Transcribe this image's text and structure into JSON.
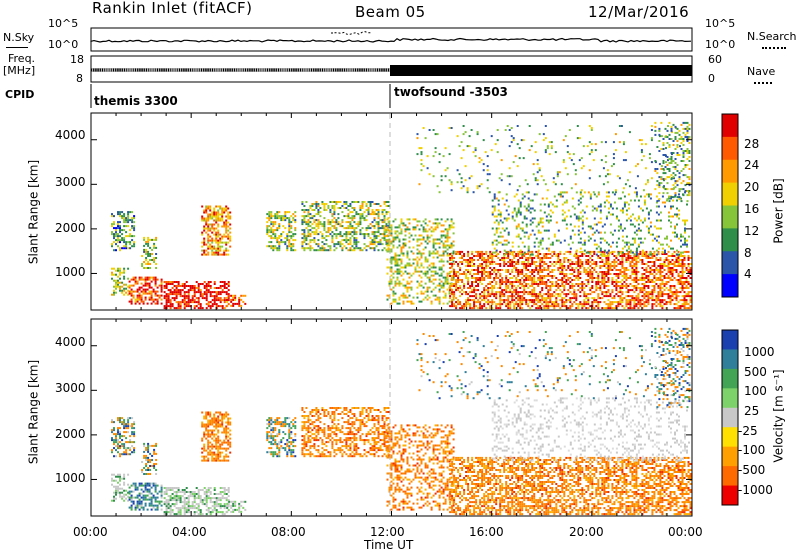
{
  "header": {
    "station": "Rankin Inlet (fitACF)",
    "beam": "Beam 05",
    "date": "12/Mar/2016"
  },
  "noise_panel": {
    "left_label": "N.Sky",
    "right_label": "N.Search",
    "left_ticks": [
      "10^5",
      "10^0"
    ],
    "right_ticks": [
      "10^5",
      "10^0"
    ]
  },
  "freq_panel": {
    "left_label_1": "Freq.",
    "left_label_2": "[MHz]",
    "right_label": "Nave",
    "left_ticks": [
      "18",
      "8"
    ],
    "right_ticks": [
      "60",
      "0"
    ]
  },
  "cpid_panel": {
    "label": "CPID",
    "mode_1": "themis 3300",
    "mode_2": "twofsound -3503"
  },
  "power_colorbar": {
    "label": "Power [dB]",
    "ticks": [
      "28",
      "24",
      "20",
      "16",
      "12",
      "8",
      "4"
    ],
    "colors": [
      "#e00000",
      "#ff5a00",
      "#ff9a00",
      "#f0d000",
      "#86c43a",
      "#2f8f4a",
      "#2a55a8",
      "#0000ff"
    ]
  },
  "velocity_colorbar": {
    "label": "Velocity [m s⁻¹]",
    "ticks": [
      "1000",
      "500",
      "100",
      "25",
      "-25",
      "-100",
      "-500",
      "-1000"
    ],
    "colors": [
      "#1a40b0",
      "#2f7f9a",
      "#44a455",
      "#7ed26a",
      "#c8c8c8",
      "#ffe000",
      "#ffa000",
      "#ff6a00",
      "#ee0000"
    ]
  },
  "axes": {
    "ylabel": "Slant Range [km]",
    "xlabel": "Time UT",
    "yticks": [
      "4000",
      "3000",
      "2000",
      "1000"
    ],
    "xticks": [
      "00:00",
      "04:00",
      "08:00",
      "12:00",
      "16:00",
      "20:00",
      "00:00"
    ]
  },
  "chart_data": [
    {
      "type": "heatmap",
      "title": "Power",
      "x_label": "Time UT",
      "y_label": "Slant Range [km]",
      "x_range_hours": [
        0,
        24
      ],
      "y_range_km": [
        180,
        4600
      ],
      "colorbar_label": "Power [dB]",
      "colorbar_range": [
        0,
        30
      ]
    },
    {
      "type": "heatmap",
      "title": "Velocity",
      "x_label": "Time UT",
      "y_label": "Slant Range [km]",
      "x_range_hours": [
        0,
        24
      ],
      "y_range_km": [
        180,
        4600
      ],
      "colorbar_label": "Velocity [m s⁻¹]",
      "colorbar_range": [
        -1000,
        1000
      ]
    }
  ]
}
